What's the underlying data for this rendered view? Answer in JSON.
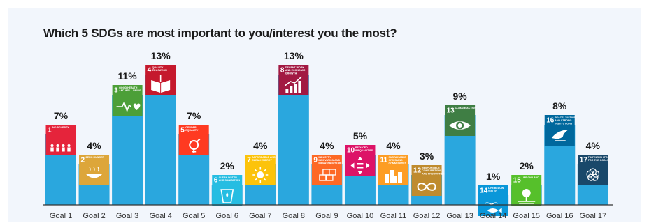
{
  "chart_data": {
    "type": "bar",
    "title": "Which 5 SDGs are most important to you/interest you the most?",
    "categories": [
      "Goal 1",
      "Goal 2",
      "Goal 3",
      "Goal 4",
      "Goal 5",
      "Goal 6",
      "Goal 7",
      "Goal 8",
      "Goal 9",
      "Goal 10",
      "Goal 11",
      "Goal 12",
      "Goal 13",
      "Goal 14",
      "Goal 15",
      "Goal 16",
      "Goal 17"
    ],
    "values": [
      7,
      4,
      11,
      13,
      7,
      2,
      4,
      13,
      4,
      5,
      4,
      3,
      9,
      1,
      2,
      8,
      4
    ],
    "value_labels": [
      "7%",
      "4%",
      "11%",
      "13%",
      "7%",
      "2%",
      "4%",
      "13%",
      "4%",
      "5%",
      "4%",
      "3%",
      "9%",
      "1%",
      "2%",
      "8%",
      "4%"
    ],
    "unit": "%",
    "ylim": [
      0,
      13
    ],
    "bar_color": "#2aa7de",
    "grid": false,
    "legend": "none",
    "goal_tiles": [
      {
        "number": "1",
        "caption": "NO POVERTY",
        "color": "#e5243b",
        "icon": "family-icon"
      },
      {
        "number": "2",
        "caption": "ZERO HUNGER",
        "color": "#dda63a",
        "icon": "bowl-icon"
      },
      {
        "number": "3",
        "caption": "GOOD HEALTH AND WELL-BEING",
        "color": "#4c9f38",
        "icon": "heartbeat-icon"
      },
      {
        "number": "4",
        "caption": "QUALITY EDUCATION",
        "color": "#c5192d",
        "icon": "book-icon"
      },
      {
        "number": "5",
        "caption": "GENDER EQUALITY",
        "color": "#ff3a21",
        "icon": "gender-icon"
      },
      {
        "number": "6",
        "caption": "CLEAN WATER AND SANITATION",
        "color": "#26bde2",
        "icon": "water-glass-icon"
      },
      {
        "number": "7",
        "caption": "AFFORDABLE AND CLEAN ENERGY",
        "color": "#fcc30b",
        "icon": "sun-icon"
      },
      {
        "number": "8",
        "caption": "DECENT WORK AND ECONOMIC GROWTH",
        "color": "#a21942",
        "icon": "growth-chart-icon"
      },
      {
        "number": "9",
        "caption": "INDUSTRY, INNOVATION AND INFRASTRUCTURE",
        "color": "#fd6925",
        "icon": "cubes-icon"
      },
      {
        "number": "10",
        "caption": "REDUCED INEQUALITIES",
        "color": "#dd1367",
        "icon": "equality-arrows-icon"
      },
      {
        "number": "11",
        "caption": "SUSTAINABLE CITIES AND COMMUNITIES",
        "color": "#fd9d24",
        "icon": "city-icon"
      },
      {
        "number": "12",
        "caption": "RESPONSIBLE CONSUMPTION AND PRODUCTION",
        "color": "#bf8b2e",
        "icon": "infinity-icon"
      },
      {
        "number": "13",
        "caption": "CLIMATE ACTION",
        "color": "#3f7e44",
        "icon": "eye-globe-icon"
      },
      {
        "number": "14",
        "caption": "LIFE BELOW WATER",
        "color": "#0a97d9",
        "icon": "fish-icon"
      },
      {
        "number": "15",
        "caption": "LIFE ON LAND",
        "color": "#56c02b",
        "icon": "tree-icon"
      },
      {
        "number": "16",
        "caption": "PEACE, JUSTICE AND STRONG INSTITUTIONS",
        "color": "#00689d",
        "icon": "dove-icon"
      },
      {
        "number": "17",
        "caption": "PARTNERSHIPS FOR THE GOALS",
        "color": "#19486a",
        "icon": "partnership-flower-icon"
      }
    ]
  }
}
